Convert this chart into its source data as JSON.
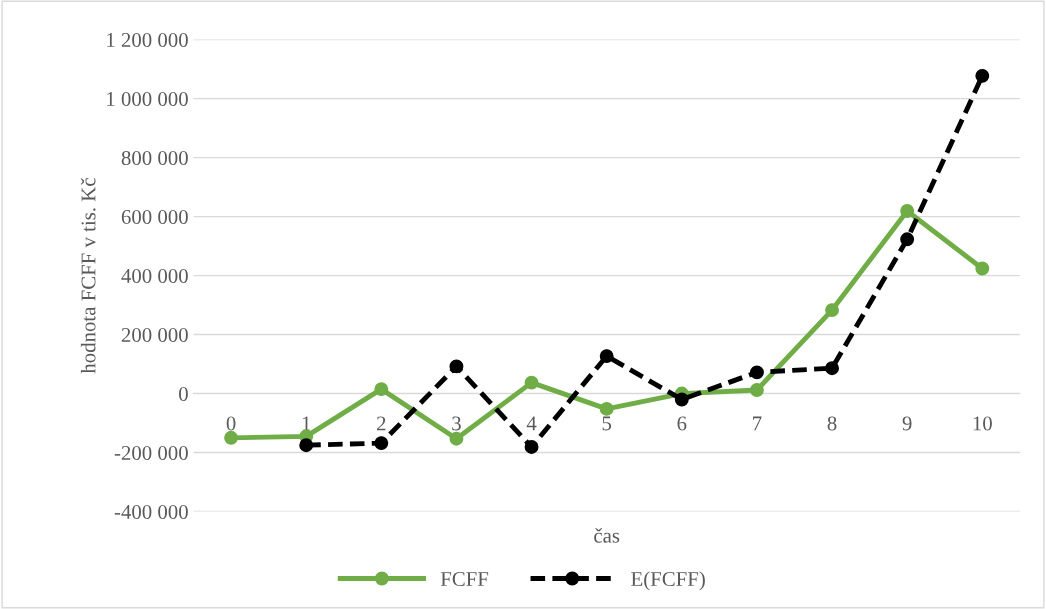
{
  "chart_data": {
    "type": "line",
    "xlabel": "čas",
    "ylabel": "hodnota FCFF v tis. Kč",
    "categories": [
      "0",
      "1",
      "2",
      "3",
      "4",
      "5",
      "6",
      "7",
      "8",
      "9",
      "10"
    ],
    "series": [
      {
        "name": "FCFF",
        "color": "#70ad47",
        "values": [
          -150000,
          -145000,
          15000,
          -153000,
          37000,
          -52000,
          0,
          12000,
          283000,
          619000,
          424000
        ],
        "marker": "circle",
        "line_style": "solid"
      },
      {
        "name": "E(FCFF)",
        "color": "#000000",
        "values": [
          null,
          -175000,
          -168000,
          92000,
          -181000,
          127000,
          -20000,
          72000,
          86000,
          523000,
          1077000
        ],
        "marker": "circle",
        "line_style": "dashed"
      }
    ],
    "ylim": [
      -400000,
      1200000
    ],
    "yticks": [
      {
        "value": -400000,
        "label": "-400 000"
      },
      {
        "value": -200000,
        "label": "-200 000"
      },
      {
        "value": 0,
        "label": "0"
      },
      {
        "value": 200000,
        "label": "200 000"
      },
      {
        "value": 400000,
        "label": "400 000"
      },
      {
        "value": 600000,
        "label": "600 000"
      },
      {
        "value": 800000,
        "label": "800 000"
      },
      {
        "value": 1000000,
        "label": "1 000 000"
      },
      {
        "value": 1200000,
        "label": "1 200 000"
      }
    ],
    "grid": "y",
    "legend": "bottom"
  }
}
